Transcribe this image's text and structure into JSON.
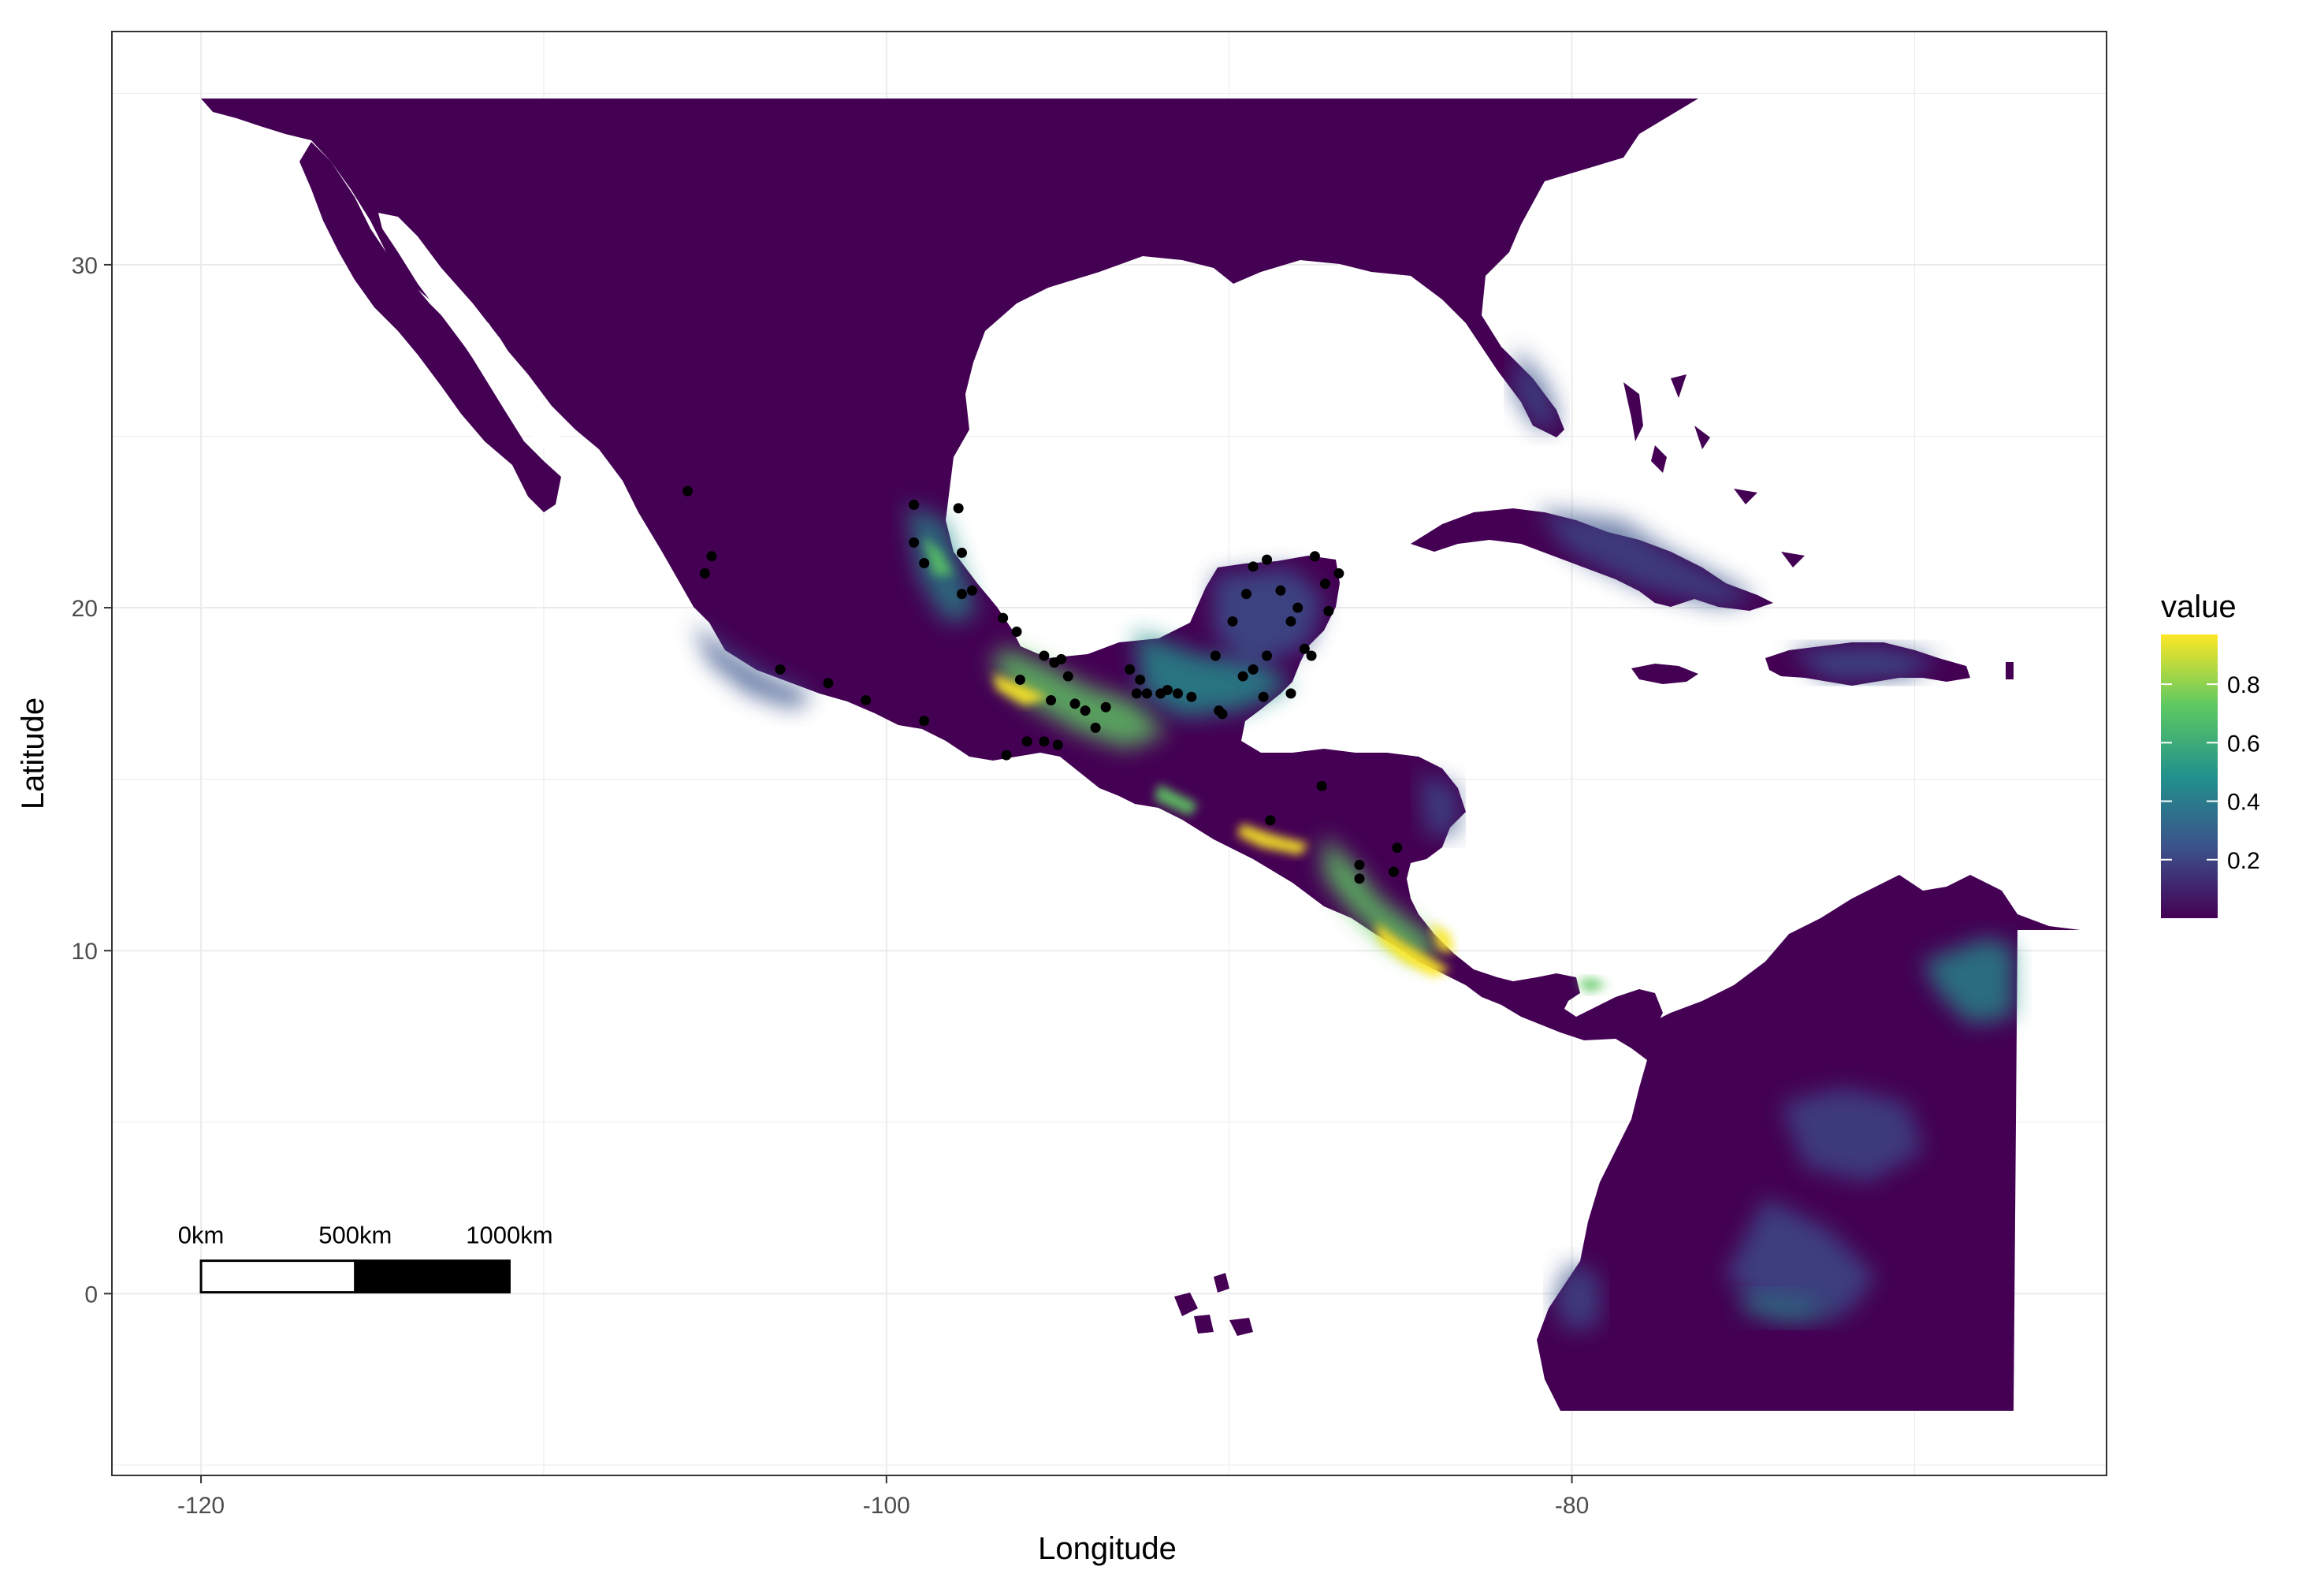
{
  "chart_data": {
    "type": "map",
    "xlabel": "Longitude",
    "ylabel": "Latitude",
    "xlim": [
      -122.6,
      -64.4
    ],
    "ylim": [
      -5.3,
      36.8
    ],
    "x_ticks": [
      -120,
      -100,
      -80
    ],
    "x_tick_labels": [
      "-120",
      "-100",
      "-80"
    ],
    "y_ticks": [
      0,
      10,
      20,
      30
    ],
    "y_tick_labels": [
      "0",
      "10",
      "20",
      "30"
    ],
    "grid": true,
    "legend": {
      "title": "value",
      "position": "right",
      "min": 0.0,
      "max": 0.97,
      "breaks": [
        0.2,
        0.4,
        0.6,
        0.8
      ],
      "break_labels": [
        "0.2",
        "0.4",
        "0.6",
        "0.8"
      ],
      "colors": [
        "#440154",
        "#3b528b",
        "#21918c",
        "#5ec962",
        "#fde725"
      ]
    },
    "scale_bar": {
      "labels": [
        "0km",
        "500km",
        "1000km"
      ],
      "start_lon": -120,
      "length_deg": 9.0,
      "lat": 0.5
    },
    "occurrence_points": [
      [
        -105.8,
        23.4
      ],
      [
        -105.3,
        21.0
      ],
      [
        -105.1,
        21.5
      ],
      [
        -103.1,
        18.2
      ],
      [
        -101.7,
        17.8
      ],
      [
        -100.6,
        17.3
      ],
      [
        -98.9,
        16.7
      ],
      [
        -96.5,
        15.7
      ],
      [
        -95.9,
        16.1
      ],
      [
        -95.4,
        16.1
      ],
      [
        -99.2,
        23.0
      ],
      [
        -99.2,
        21.9
      ],
      [
        -98.9,
        21.3
      ],
      [
        -97.9,
        22.9
      ],
      [
        -97.8,
        21.6
      ],
      [
        -97.5,
        20.5
      ],
      [
        -97.8,
        20.4
      ],
      [
        -96.6,
        19.7
      ],
      [
        -96.2,
        19.3
      ],
      [
        -95.4,
        18.6
      ],
      [
        -95.1,
        18.4
      ],
      [
        -94.7,
        18.0
      ],
      [
        -96.1,
        17.9
      ],
      [
        -95.2,
        17.3
      ],
      [
        -94.5,
        17.2
      ],
      [
        -94.2,
        17.0
      ],
      [
        -93.6,
        17.1
      ],
      [
        -92.9,
        18.2
      ],
      [
        -92.6,
        17.9
      ],
      [
        -92.4,
        17.5
      ],
      [
        -92.0,
        17.5
      ],
      [
        -91.5,
        17.5
      ],
      [
        -91.1,
        17.4
      ],
      [
        -90.3,
        17.0
      ],
      [
        -90.4,
        18.6
      ],
      [
        -89.9,
        19.6
      ],
      [
        -89.5,
        20.4
      ],
      [
        -89.3,
        21.2
      ],
      [
        -88.9,
        21.4
      ],
      [
        -88.5,
        20.5
      ],
      [
        -88.2,
        19.6
      ],
      [
        -88.9,
        18.6
      ],
      [
        -89.3,
        18.2
      ],
      [
        -89.0,
        17.4
      ],
      [
        -88.2,
        17.5
      ],
      [
        -87.6,
        18.6
      ],
      [
        -87.5,
        21.5
      ],
      [
        -87.2,
        20.7
      ],
      [
        -86.8,
        21.0
      ],
      [
        -87.1,
        19.9
      ],
      [
        -87.8,
        18.8
      ],
      [
        -88.8,
        13.8
      ],
      [
        -87.3,
        14.8
      ],
      [
        -86.2,
        12.5
      ],
      [
        -85.2,
        12.3
      ],
      [
        -85.1,
        13.0
      ],
      [
        -86.2,
        12.1
      ],
      [
        -94.9,
        18.5
      ],
      [
        -90.2,
        16.9
      ],
      [
        -89.6,
        18.0
      ],
      [
        -88.0,
        20.0
      ],
      [
        -93.9,
        16.5
      ],
      [
        -95.0,
        16.0
      ],
      [
        -92.7,
        17.5
      ],
      [
        -91.8,
        17.6
      ]
    ]
  }
}
